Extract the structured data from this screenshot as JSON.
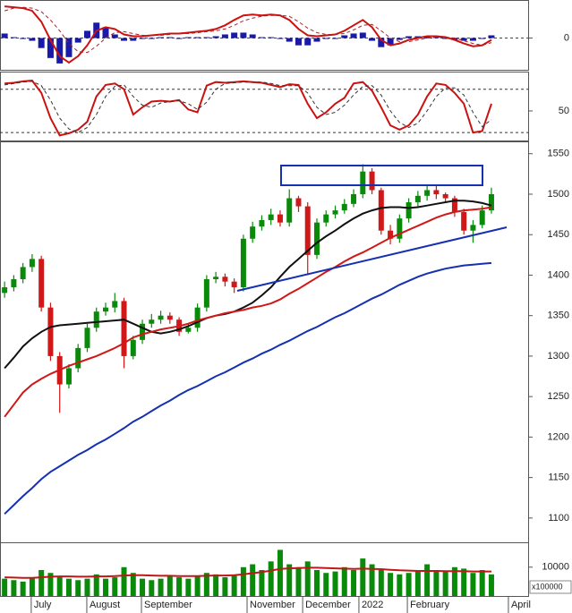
{
  "chart_data": [
    {
      "type": "macd",
      "xlim": [
        0,
        230
      ],
      "ylim": [
        -35,
        40
      ],
      "yticks": [
        0
      ],
      "x": [
        2,
        6,
        10,
        14,
        18,
        22,
        26,
        30,
        34,
        38,
        42,
        46,
        50,
        54,
        58,
        62,
        66,
        70,
        74,
        78,
        82,
        86,
        90,
        94,
        98,
        102,
        106,
        110,
        114,
        118,
        122,
        126,
        130,
        134,
        138,
        142,
        146,
        150,
        154,
        158,
        162,
        166,
        170,
        174,
        178,
        182,
        186,
        190,
        194,
        198,
        202,
        206,
        210,
        214
      ],
      "histogram": {
        "color": "#1a1aa8",
        "values": [
          5,
          1,
          -1,
          -3,
          -11,
          -22,
          -28,
          -21,
          -5,
          8,
          17,
          12,
          4,
          -3,
          -3,
          -1,
          0,
          1,
          1,
          0,
          1,
          1,
          1,
          2,
          4,
          6,
          6,
          4,
          1,
          1,
          0,
          -4,
          -8,
          -8,
          -4,
          -1,
          0,
          3,
          5,
          6,
          -3,
          -10,
          -8,
          -2,
          2,
          2,
          2,
          1,
          0,
          -2,
          -3,
          -3,
          0,
          3
        ]
      },
      "series": [
        {
          "color": "#cc1111",
          "style": "solid",
          "values": [
            35,
            34,
            33,
            30,
            18,
            -2,
            -20,
            -27,
            -20,
            -8,
            8,
            12,
            10,
            4,
            2,
            2,
            3,
            4,
            5,
            5,
            6,
            7,
            8,
            10,
            14,
            20,
            25,
            26,
            25,
            26,
            25,
            20,
            10,
            3,
            2,
            3,
            4,
            8,
            14,
            20,
            12,
            -2,
            -8,
            -6,
            -2,
            0,
            2,
            2,
            1,
            -2,
            -6,
            -9,
            -8,
            -2
          ]
        },
        {
          "color": "#aa2222",
          "style": "dashed",
          "values": [
            30,
            33,
            34,
            33,
            29,
            20,
            8,
            -6,
            -15,
            -16,
            -9,
            0,
            6,
            7,
            5,
            3,
            3,
            3,
            4,
            5,
            5,
            6,
            7,
            8,
            10,
            14,
            19,
            22,
            24,
            25,
            25,
            24,
            18,
            11,
            6,
            4,
            4,
            5,
            9,
            14,
            15,
            8,
            0,
            -4,
            -4,
            -2,
            0,
            1,
            1,
            0,
            -3,
            -6,
            -8,
            -5
          ]
        }
      ]
    },
    {
      "type": "stochastic",
      "xlim": [
        0,
        230
      ],
      "ylim": [
        9,
        102
      ],
      "yticks": [
        50
      ],
      "hlines": [
        20,
        80
      ],
      "x": [
        2,
        6,
        10,
        14,
        18,
        22,
        26,
        30,
        34,
        38,
        42,
        46,
        50,
        54,
        58,
        62,
        66,
        70,
        74,
        78,
        82,
        86,
        90,
        94,
        98,
        102,
        106,
        110,
        114,
        118,
        122,
        126,
        130,
        134,
        138,
        142,
        146,
        150,
        154,
        158,
        162,
        166,
        170,
        174,
        178,
        182,
        186,
        190,
        194,
        198,
        202,
        206,
        210,
        214
      ],
      "series": [
        {
          "color": "#cc1111",
          "style": "solid",
          "values": [
            88,
            89,
            91,
            92,
            75,
            40,
            16,
            19,
            24,
            35,
            70,
            86,
            88,
            80,
            45,
            55,
            63,
            64,
            63,
            65,
            52,
            48,
            85,
            90,
            89,
            90,
            91,
            90,
            89,
            86,
            83,
            87,
            86,
            60,
            40,
            48,
            60,
            68,
            88,
            90,
            78,
            55,
            30,
            24,
            30,
            45,
            70,
            88,
            86,
            75,
            60,
            20,
            22,
            60
          ]
        },
        {
          "color": "#333333",
          "style": "dashed",
          "values": [
            86,
            88,
            90,
            91,
            85,
            65,
            40,
            25,
            20,
            27,
            45,
            70,
            84,
            86,
            70,
            58,
            55,
            61,
            63,
            64,
            60,
            52,
            62,
            80,
            88,
            89,
            90,
            90,
            90,
            88,
            85,
            85,
            85,
            75,
            55,
            45,
            48,
            58,
            72,
            84,
            85,
            72,
            50,
            34,
            27,
            33,
            50,
            70,
            82,
            82,
            72,
            48,
            28,
            38
          ]
        }
      ]
    },
    {
      "type": "candlestick",
      "xlim": [
        0,
        230
      ],
      "ylim": [
        1070,
        1563
      ],
      "yticks": [
        1100,
        1150,
        1200,
        1250,
        1300,
        1350,
        1400,
        1450,
        1500,
        1550
      ],
      "up_color": "#0a8a0a",
      "down_color": "#d01818",
      "x": [
        2,
        6,
        10,
        14,
        18,
        22,
        26,
        30,
        34,
        38,
        42,
        46,
        50,
        54,
        58,
        62,
        66,
        70,
        74,
        78,
        82,
        86,
        90,
        94,
        98,
        102,
        106,
        110,
        114,
        118,
        122,
        126,
        130,
        134,
        138,
        142,
        146,
        150,
        154,
        158,
        162,
        166,
        170,
        174,
        178,
        182,
        186,
        190,
        194,
        198,
        202,
        206,
        210,
        214
      ],
      "open": [
        1378,
        1385,
        1395,
        1410,
        1420,
        1360,
        1300,
        1265,
        1285,
        1310,
        1335,
        1355,
        1360,
        1368,
        1300,
        1320,
        1340,
        1345,
        1350,
        1345,
        1330,
        1335,
        1360,
        1395,
        1398,
        1392,
        1385,
        1445,
        1460,
        1468,
        1475,
        1465,
        1495,
        1485,
        1425,
        1465,
        1475,
        1480,
        1488,
        1500,
        1528,
        1505,
        1455,
        1445,
        1470,
        1490,
        1498,
        1505,
        1500,
        1495,
        1478,
        1455,
        1462,
        1480
      ],
      "high": [
        1392,
        1400,
        1415,
        1426,
        1424,
        1366,
        1305,
        1290,
        1315,
        1340,
        1360,
        1366,
        1378,
        1372,
        1325,
        1345,
        1352,
        1356,
        1354,
        1348,
        1340,
        1365,
        1400,
        1404,
        1402,
        1396,
        1450,
        1466,
        1474,
        1482,
        1480,
        1506,
        1498,
        1490,
        1470,
        1480,
        1486,
        1494,
        1506,
        1537,
        1532,
        1508,
        1462,
        1475,
        1495,
        1504,
        1512,
        1510,
        1502,
        1498,
        1482,
        1468,
        1486,
        1508
      ],
      "low": [
        1372,
        1380,
        1390,
        1404,
        1355,
        1294,
        1230,
        1260,
        1280,
        1305,
        1330,
        1350,
        1354,
        1285,
        1296,
        1315,
        1335,
        1340,
        1340,
        1325,
        1328,
        1330,
        1355,
        1390,
        1386,
        1378,
        1380,
        1440,
        1455,
        1462,
        1460,
        1460,
        1478,
        1400,
        1420,
        1460,
        1470,
        1476,
        1484,
        1495,
        1500,
        1450,
        1438,
        1440,
        1465,
        1485,
        1492,
        1494,
        1490,
        1472,
        1450,
        1440,
        1458,
        1476
      ],
      "close": [
        1385,
        1395,
        1410,
        1420,
        1360,
        1300,
        1265,
        1285,
        1310,
        1335,
        1355,
        1360,
        1368,
        1300,
        1320,
        1340,
        1345,
        1350,
        1345,
        1330,
        1335,
        1360,
        1395,
        1398,
        1392,
        1385,
        1445,
        1460,
        1468,
        1475,
        1465,
        1495,
        1485,
        1425,
        1465,
        1475,
        1480,
        1488,
        1500,
        1528,
        1505,
        1455,
        1445,
        1470,
        1490,
        1498,
        1505,
        1500,
        1495,
        1478,
        1455,
        1462,
        1480,
        1500
      ],
      "series": [
        {
          "color": "#111111",
          "style": "solid",
          "values": [
            1285,
            1298,
            1312,
            1322,
            1330,
            1336,
            1338,
            1339,
            1340,
            1341,
            1342,
            1343,
            1344,
            1345,
            1340,
            1335,
            1330,
            1328,
            1330,
            1333,
            1337,
            1342,
            1347,
            1350,
            1352,
            1355,
            1360,
            1366,
            1375,
            1385,
            1398,
            1410,
            1420,
            1430,
            1440,
            1448,
            1455,
            1463,
            1470,
            1476,
            1480,
            1483,
            1484,
            1484,
            1483,
            1484,
            1486,
            1488,
            1490,
            1492,
            1492,
            1491,
            1489,
            1486
          ]
        },
        {
          "color": "#d01818",
          "style": "solid",
          "values": [
            1225,
            1240,
            1255,
            1265,
            1272,
            1278,
            1283,
            1288,
            1292,
            1296,
            1300,
            1305,
            1310,
            1316,
            1323,
            1327,
            1330,
            1333,
            1335,
            1337,
            1340,
            1344,
            1347,
            1350,
            1353,
            1355,
            1357,
            1360,
            1362,
            1365,
            1370,
            1377,
            1383,
            1390,
            1397,
            1404,
            1410,
            1417,
            1423,
            1428,
            1434,
            1440,
            1446,
            1451,
            1456,
            1461,
            1466,
            1471,
            1475,
            1478,
            1480,
            1481,
            1482,
            1484
          ]
        },
        {
          "color": "#1530b0",
          "style": "solid",
          "values": [
            1105,
            1116,
            1127,
            1137,
            1148,
            1157,
            1164,
            1171,
            1178,
            1184,
            1191,
            1197,
            1204,
            1211,
            1219,
            1225,
            1232,
            1239,
            1245,
            1252,
            1258,
            1263,
            1269,
            1275,
            1280,
            1286,
            1292,
            1297,
            1303,
            1308,
            1314,
            1319,
            1325,
            1331,
            1336,
            1342,
            1348,
            1353,
            1359,
            1365,
            1371,
            1376,
            1382,
            1388,
            1393,
            1398,
            1402,
            1405,
            1408,
            1410,
            1412,
            1413,
            1414,
            1415
          ]
        }
      ]
    },
    {
      "type": "volume",
      "xlim": [
        0,
        230
      ],
      "ylim": [
        0,
        18000
      ],
      "yticks": [
        10000
      ],
      "unit_label": "x100000",
      "color": "#0a8a0a",
      "x": [
        2,
        6,
        10,
        14,
        18,
        22,
        26,
        30,
        34,
        38,
        42,
        46,
        50,
        54,
        58,
        62,
        66,
        70,
        74,
        78,
        82,
        86,
        90,
        94,
        98,
        102,
        106,
        110,
        114,
        118,
        122,
        126,
        130,
        134,
        138,
        142,
        146,
        150,
        154,
        158,
        162,
        166,
        170,
        174,
        178,
        182,
        186,
        190,
        194,
        198,
        202,
        206,
        210,
        214
      ],
      "values": [
        6000,
        5500,
        5000,
        6500,
        9000,
        8000,
        7000,
        6000,
        5500,
        6000,
        7500,
        6000,
        6500,
        10000,
        8000,
        6000,
        5500,
        6000,
        7000,
        6500,
        6000,
        7000,
        8000,
        7500,
        6500,
        7000,
        10000,
        11000,
        9000,
        12000,
        16000,
        11000,
        10000,
        12000,
        9000,
        8000,
        8500,
        10000,
        9000,
        13000,
        11000,
        9000,
        8000,
        7500,
        8000,
        8500,
        11000,
        9000,
        8500,
        10000,
        9500,
        8000,
        9000,
        7500
      ],
      "series": [
        {
          "color": "#c01818",
          "style": "solid",
          "values": [
            6500,
            6400,
            6300,
            6300,
            6500,
            6700,
            6800,
            6800,
            6700,
            6700,
            6800,
            6800,
            6900,
            7100,
            7200,
            7200,
            7100,
            7000,
            7000,
            6900,
            6900,
            6900,
            7000,
            7100,
            7100,
            7200,
            7500,
            7900,
            8300,
            8800,
            9400,
            9600,
            9700,
            9800,
            9800,
            9700,
            9600,
            9500,
            9400,
            9500,
            9400,
            9300,
            9100,
            8900,
            8800,
            8700,
            8700,
            8700,
            8600,
            8600,
            8600,
            8500,
            8500,
            8500
          ]
        }
      ],
      "xticks": [
        {
          "value": 13.6,
          "label": "July"
        },
        {
          "value": 37.8,
          "label": "August"
        },
        {
          "value": 61.6,
          "label": "September"
        },
        {
          "value": 107.6,
          "label": "November"
        },
        {
          "value": 131.8,
          "label": "December"
        },
        {
          "value": 156.3,
          "label": "2022"
        },
        {
          "value": 177.4,
          "label": "February"
        },
        {
          "value": 221.4,
          "label": "April"
        }
      ]
    }
  ]
}
